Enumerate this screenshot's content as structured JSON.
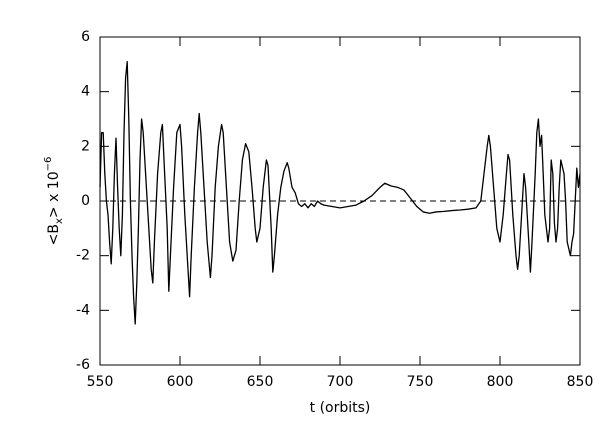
{
  "chart_data": {
    "type": "line",
    "xlabel": "t (orbits)",
    "ylabel": [
      "<B",
      "x",
      "> x 10",
      "−6"
    ],
    "x": [
      550,
      551,
      552,
      553,
      554,
      555,
      556,
      557,
      558,
      559,
      560,
      561,
      562,
      563,
      564,
      565,
      566,
      567,
      568,
      569,
      570,
      571,
      572,
      573,
      574,
      575,
      576,
      577,
      578,
      580,
      582,
      583,
      584,
      586,
      588,
      589,
      590,
      592,
      593,
      594,
      596,
      598,
      600,
      601,
      603,
      605,
      606,
      607,
      609,
      611,
      612,
      613,
      615,
      617,
      619,
      620,
      622,
      624,
      626,
      627,
      629,
      631,
      633,
      635,
      637,
      639,
      641,
      643,
      645,
      647,
      648,
      650,
      652,
      654,
      655,
      657,
      658,
      659,
      661,
      663,
      665,
      667,
      668,
      670,
      672,
      674,
      676,
      678,
      680,
      682,
      684,
      686,
      688,
      690,
      695,
      700,
      705,
      710,
      715,
      720,
      725,
      728,
      732,
      736,
      740,
      744,
      748,
      752,
      756,
      760,
      765,
      770,
      775,
      780,
      785,
      788,
      790,
      792,
      793,
      794,
      796,
      798,
      800,
      802,
      804,
      805,
      806,
      808,
      810,
      811,
      812,
      814,
      815,
      816,
      818,
      819,
      820,
      822,
      823,
      824,
      825,
      826,
      827,
      828,
      830,
      831,
      832,
      833,
      834,
      835,
      836,
      837,
      838,
      840,
      841,
      842,
      844,
      845,
      846,
      847,
      848,
      849,
      850
    ],
    "values": [
      0.5,
      2.5,
      2.5,
      1,
      0,
      -0.5,
      -1.5,
      -2.3,
      -1,
      1,
      2.3,
      0.5,
      -1,
      -2,
      -0.5,
      2.5,
      4.5,
      5.1,
      3,
      0,
      -2,
      -3.5,
      -4.5,
      -3,
      -1,
      1.5,
      3,
      2.5,
      1.5,
      -0.5,
      -2.5,
      -3,
      -1.5,
      1,
      2.5,
      2.8,
      1.5,
      -1,
      -3.3,
      -2,
      0.5,
      2.5,
      2.8,
      2,
      -0.5,
      -2.5,
      -3.5,
      -2,
      0.5,
      2.5,
      3.2,
      2.5,
      0.5,
      -1.5,
      -2.8,
      -2,
      0.5,
      2,
      2.8,
      2.5,
      0.5,
      -1.5,
      -2.2,
      -1.8,
      0,
      1.5,
      2.1,
      1.8,
      0.5,
      -1,
      -1.5,
      -1,
      0.5,
      1.5,
      1.3,
      -1,
      -2.6,
      -2,
      -0.5,
      0.5,
      1.1,
      1.4,
      1.2,
      0.5,
      0.3,
      -0.1,
      -0.2,
      -0.1,
      -0.25,
      -0.1,
      -0.2,
      0,
      -0.1,
      -0.15,
      -0.2,
      -0.25,
      -0.2,
      -0.15,
      0,
      0.2,
      0.5,
      0.65,
      0.55,
      0.5,
      0.4,
      0.1,
      -0.2,
      -0.4,
      -0.45,
      -0.4,
      -0.38,
      -0.35,
      -0.33,
      -0.3,
      -0.25,
      0,
      1,
      2,
      2.4,
      2,
      0.5,
      -1,
      -1.5,
      -0.5,
      1,
      1.7,
      1.5,
      -0.5,
      -2,
      -2.5,
      -2,
      0,
      1,
      0.5,
      -1.5,
      -2.6,
      -1.5,
      1,
      2.5,
      3,
      2,
      2.4,
      1,
      -0.5,
      -1.5,
      -1,
      1.5,
      1,
      -0.8,
      -1.5,
      -1,
      0.5,
      1.5,
      1,
      0,
      -1.5,
      -2,
      -1.5,
      -1.2,
      0,
      1.2,
      0.5,
      1
    ],
    "color": "#000000",
    "hline": 0,
    "xlim": [
      550,
      850
    ],
    "xticks": [
      550,
      600,
      650,
      700,
      750,
      800,
      850
    ],
    "ylim": [
      -6,
      6
    ],
    "yticks": [
      -6,
      -4,
      -2,
      0,
      2,
      4,
      6
    ]
  }
}
